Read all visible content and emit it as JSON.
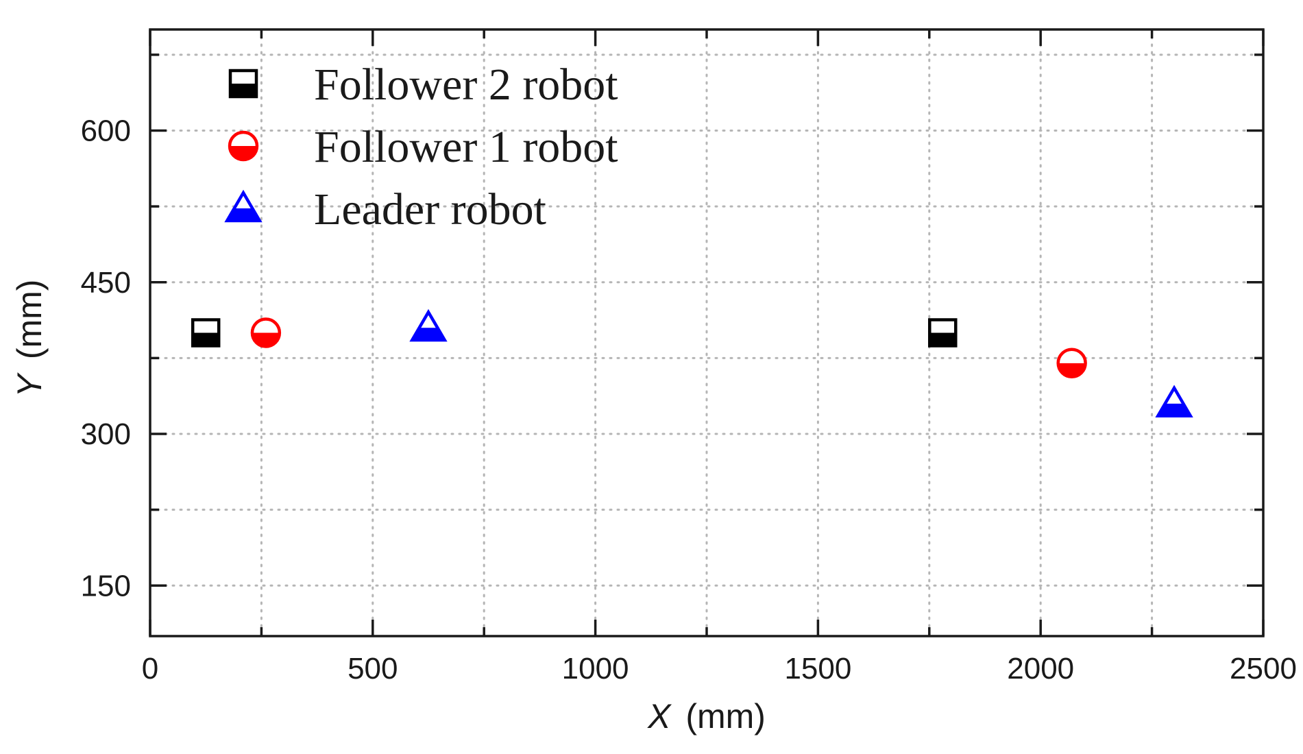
{
  "chart_data": {
    "type": "scatter",
    "title": "",
    "xlabel_var": "X",
    "xlabel_unit": "(mm)",
    "ylabel_var": "Y",
    "ylabel_unit": "(mm)",
    "xlim": [
      0,
      2500
    ],
    "ylim": [
      100,
      700
    ],
    "xticks": [
      0,
      500,
      1000,
      1500,
      2000,
      2500
    ],
    "yticks_labeled": [
      150,
      300,
      450,
      600
    ],
    "x_grid": [
      250,
      750,
      1250,
      1750,
      2250
    ],
    "y_grid": [
      225,
      375,
      525,
      675
    ],
    "grid": true,
    "legend_position": "top-left",
    "series": [
      {
        "name": "Follower 2 robot",
        "marker": "half-filled-square",
        "color": "#000000",
        "points": [
          {
            "x": 125,
            "y": 400
          },
          {
            "x": 1780,
            "y": 400
          }
        ]
      },
      {
        "name": "Follower 1 robot",
        "marker": "half-filled-circle",
        "color": "#ff0000",
        "points": [
          {
            "x": 260,
            "y": 400
          },
          {
            "x": 2070,
            "y": 370
          }
        ]
      },
      {
        "name": "Leader robot",
        "marker": "half-filled-triangle",
        "color": "#0000ff",
        "points": [
          {
            "x": 625,
            "y": 405
          },
          {
            "x": 2300,
            "y": 330
          }
        ]
      }
    ]
  }
}
